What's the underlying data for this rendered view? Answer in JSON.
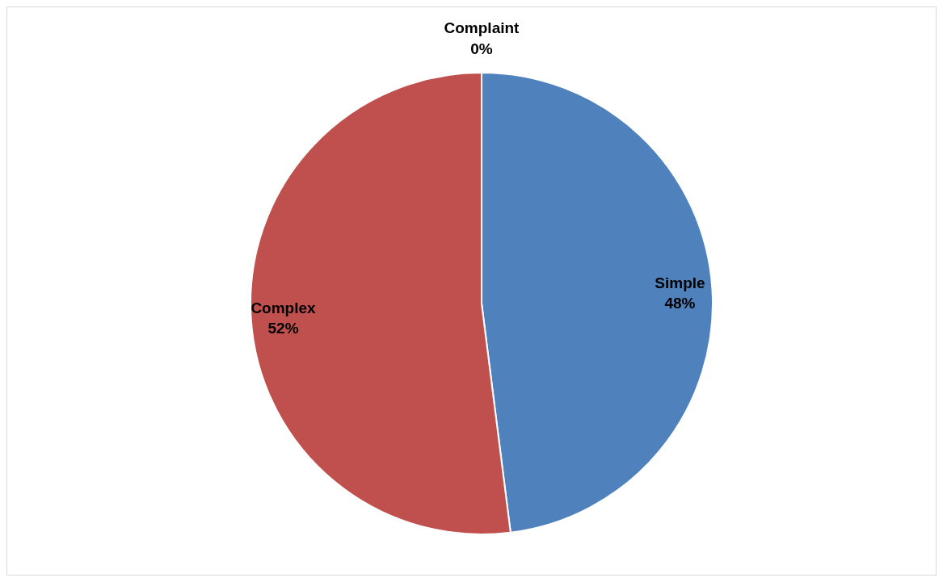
{
  "chart_data": {
    "type": "pie",
    "categories": [
      "Simple",
      "Complex",
      "Complaint"
    ],
    "values": [
      48,
      52,
      0
    ],
    "colors": [
      "#4f81bd",
      "#c0504d",
      "#9bbb59"
    ],
    "value_labels": [
      "48%",
      "52%",
      "0%"
    ],
    "legend": false
  }
}
